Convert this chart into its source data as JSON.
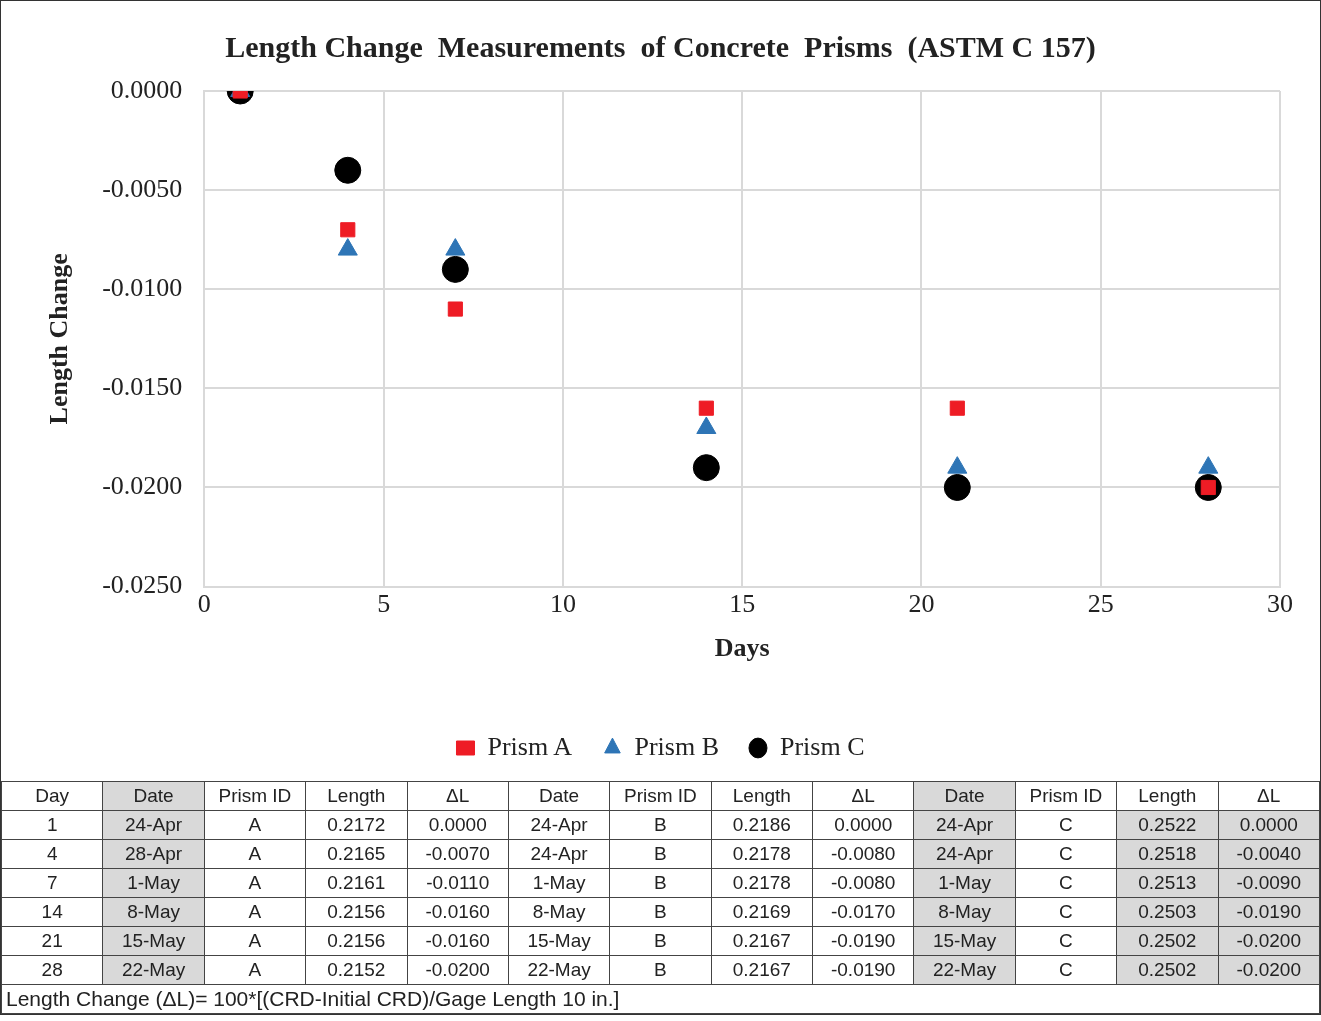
{
  "chart_data": {
    "type": "scatter",
    "title": "Length Change  Measurements  of Concrete  Prisms  (ASTM C 157)",
    "xlabel": "Days",
    "ylabel": "Length Change",
    "x": [
      1,
      4,
      7,
      14,
      21,
      28
    ],
    "series": [
      {
        "name": "Prism A",
        "color": "#ee1c25",
        "marker": "square",
        "values": [
          0,
          -0.007,
          -0.011,
          -0.016,
          -0.016,
          -0.02
        ]
      },
      {
        "name": "Prism B",
        "color": "#2e75b6",
        "marker": "triangle",
        "values": [
          0,
          -0.008,
          -0.008,
          -0.017,
          -0.019,
          -0.019
        ]
      },
      {
        "name": "Prism C",
        "color": "#000000",
        "marker": "circle",
        "values": [
          0,
          -0.004,
          -0.009,
          -0.019,
          -0.02,
          -0.02
        ]
      }
    ],
    "xlim": [
      0,
      30
    ],
    "xticks": [
      0,
      5,
      10,
      15,
      20,
      25,
      30
    ],
    "ylim": [
      -0.025,
      0
    ],
    "yticks": [
      {
        "value": 0,
        "label": "0.0000"
      },
      {
        "value": -0.005,
        "label": "-0.0050"
      },
      {
        "value": -0.01,
        "label": "-0.0100"
      },
      {
        "value": -0.015,
        "label": "-0.0150"
      },
      {
        "value": -0.02,
        "label": "-0.0200"
      },
      {
        "value": -0.025,
        "label": "-0.0250"
      }
    ],
    "grid": true,
    "legend": "bottom",
    "annotations": [
      "Day",
      "Date",
      "Prism ID",
      "Length",
      "ΔL",
      "Date",
      "Prism ID",
      "Length",
      "ΔL",
      "Date",
      "Prism ID",
      "Length",
      "ΔL",
      "1",
      "24-Apr",
      "A",
      "0.2172",
      "0.0000",
      "24-Apr",
      "B",
      "0.2186",
      "0.0000",
      "24-Apr",
      "C",
      "0.2522",
      "0.0000",
      "4",
      "28-Apr",
      "A",
      "0.2165",
      "-0.0070",
      "24-Apr",
      "B",
      "0.2178",
      "-0.0080",
      "24-Apr",
      "C",
      "0.2518",
      "-0.0040",
      "7",
      "1-May",
      "A",
      "0.2161",
      "-0.0110",
      "1-May",
      "B",
      "0.2178",
      "-0.0080",
      "1-May",
      "C",
      "0.2513",
      "-0.0090",
      "14",
      "8-May",
      "A",
      "0.2156",
      "-0.0160",
      "8-May",
      "B",
      "0.2169",
      "-0.0170",
      "8-May",
      "C",
      "0.2503",
      "-0.0190",
      "21",
      "15-May",
      "A",
      "0.2156",
      "-0.0160",
      "15-May",
      "B",
      "0.2167",
      "-0.0190",
      "15-May",
      "C",
      "0.2502",
      "-0.0200",
      "28",
      "22-May",
      "A",
      "0.2152",
      "-0.0200",
      "22-May",
      "B",
      "0.2167",
      "-0.0190",
      "22-May",
      "C",
      "0.2502",
      "-0.0200",
      "Length Change (ΔL)= 100*[(CRD-Initial CRD)/Gage Length 10 in.]"
    ]
  }
}
